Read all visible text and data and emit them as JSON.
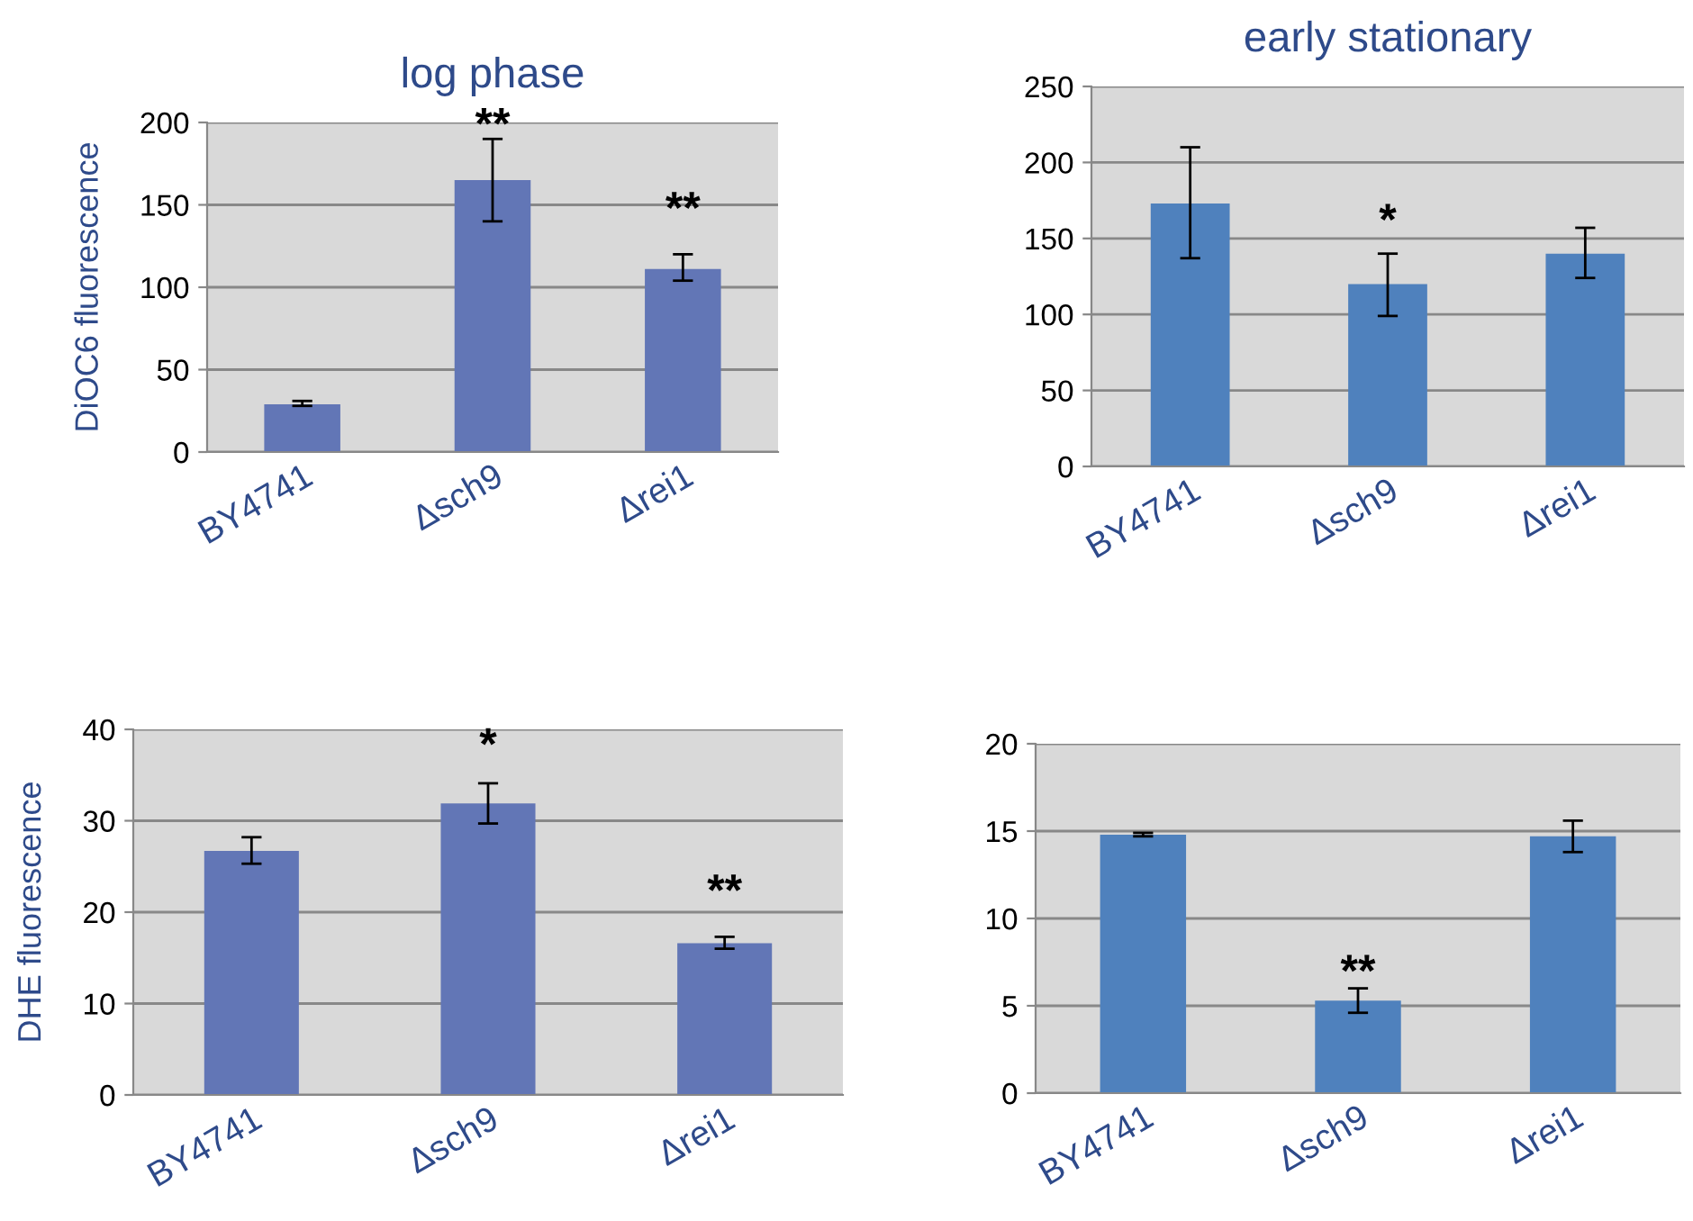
{
  "chart_data": [
    {
      "type": "bar",
      "title": "log phase",
      "ylabel": "DiOC6 fluorescence",
      "categories": [
        "BY4741",
        "Δsch9",
        "Δrei1"
      ],
      "values": [
        29,
        165,
        111
      ],
      "errors": [
        [
          28,
          31
        ],
        [
          140,
          190
        ],
        [
          104,
          120
        ]
      ],
      "color": "#6276b6",
      "ylim": [
        0,
        200
      ],
      "yticks": [
        0,
        50,
        100,
        150,
        200
      ],
      "grid": "y",
      "annotations": [
        "**",
        "**"
      ]
    },
    {
      "type": "bar",
      "title": "early stationary",
      "categories": [
        "BY4741",
        "Δsch9",
        "Δrei1"
      ],
      "values": [
        173,
        120,
        140
      ],
      "errors": [
        [
          137,
          210
        ],
        [
          99,
          140
        ],
        [
          124,
          157
        ]
      ],
      "color": "#4f81bd",
      "ylim": [
        0,
        250
      ],
      "yticks": [
        0,
        50,
        100,
        150,
        200,
        250
      ],
      "grid": "y",
      "annotations": [
        "*"
      ]
    },
    {
      "type": "bar",
      "ylabel": "DHE fluorescence",
      "categories": [
        "BY4741",
        "Δsch9",
        "Δrei1"
      ],
      "values": [
        26.7,
        31.9,
        16.6
      ],
      "errors": [
        [
          25.3,
          28.2
        ],
        [
          29.7,
          34.1
        ],
        [
          16.0,
          17.3
        ]
      ],
      "color": "#6276b6",
      "ylim": [
        0,
        40
      ],
      "yticks": [
        0,
        10,
        20,
        30,
        40
      ],
      "grid": "y",
      "annotations": [
        "*",
        "**"
      ]
    },
    {
      "type": "bar",
      "categories": [
        "BY4741",
        "Δsch9",
        "Δrei1"
      ],
      "values": [
        14.8,
        5.3,
        14.7
      ],
      "errors": [
        [
          14.7,
          14.9
        ],
        [
          4.6,
          6.0
        ],
        [
          13.8,
          15.6
        ]
      ],
      "color": "#4f81bd",
      "ylim": [
        0,
        20
      ],
      "yticks": [
        0,
        5,
        10,
        15,
        20
      ],
      "grid": "y",
      "annotations": [
        "**"
      ]
    }
  ]
}
